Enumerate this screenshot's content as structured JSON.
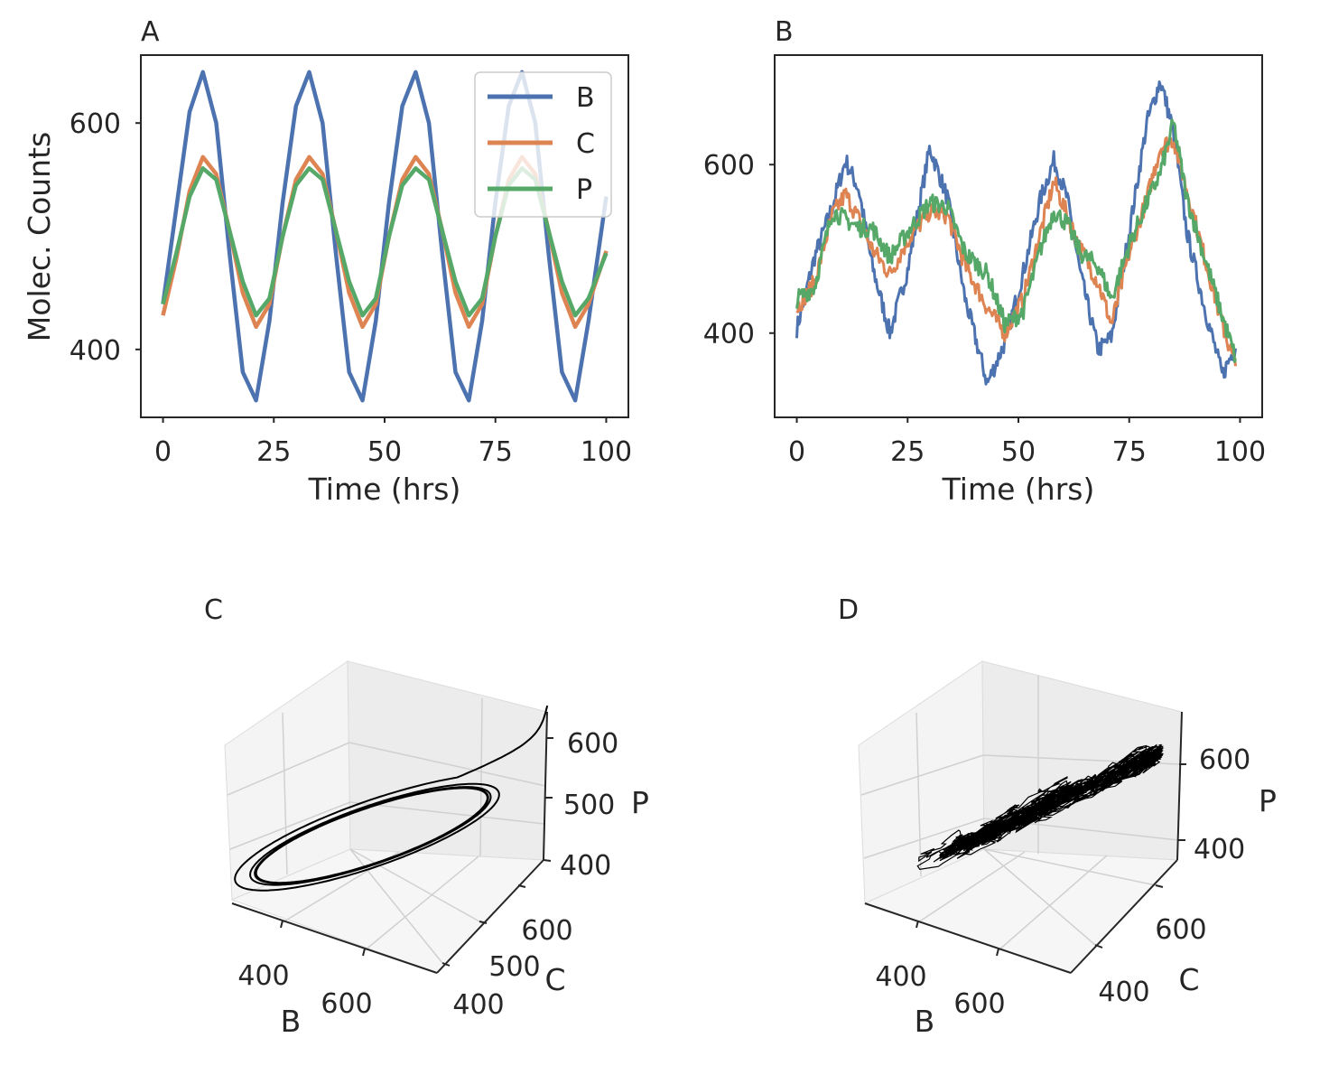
{
  "figure": {
    "panels": [
      {
        "label": "A"
      },
      {
        "label": "B"
      },
      {
        "label": "C"
      },
      {
        "label": "D"
      }
    ]
  },
  "chart_data": [
    {
      "panel": "A",
      "type": "line",
      "xlabel": "Time (hrs)",
      "ylabel": "Molec. Counts",
      "xlim": [
        -5,
        105
      ],
      "ylim": [
        340,
        660
      ],
      "xticks": [
        0,
        25,
        50,
        75,
        100
      ],
      "yticks": [
        400,
        600
      ],
      "grid": false,
      "legend_position": "top-right",
      "x": [
        0,
        3,
        6,
        9,
        12,
        15,
        18,
        21,
        24,
        27,
        30,
        33,
        36,
        39,
        42,
        45,
        48,
        51,
        54,
        57,
        60,
        63,
        66,
        69,
        72,
        75,
        78,
        81,
        84,
        87,
        90,
        93,
        96,
        100
      ],
      "series": [
        {
          "name": "B",
          "color": "#4c72b0",
          "values": [
            440,
            525,
            610,
            645,
            600,
            485,
            380,
            355,
            425,
            530,
            615,
            645,
            600,
            485,
            380,
            355,
            425,
            530,
            615,
            645,
            600,
            485,
            380,
            355,
            425,
            530,
            615,
            645,
            600,
            485,
            380,
            355,
            425,
            535
          ]
        },
        {
          "name": "C",
          "color": "#dd8452",
          "values": [
            430,
            480,
            540,
            570,
            555,
            505,
            450,
            420,
            440,
            500,
            550,
            570,
            555,
            505,
            450,
            420,
            440,
            500,
            550,
            570,
            555,
            505,
            450,
            420,
            440,
            500,
            550,
            570,
            555,
            505,
            450,
            420,
            440,
            487
          ]
        },
        {
          "name": "P",
          "color": "#55a868",
          "values": [
            440,
            485,
            535,
            560,
            550,
            505,
            460,
            430,
            445,
            500,
            545,
            560,
            550,
            505,
            460,
            430,
            445,
            500,
            545,
            560,
            550,
            505,
            460,
            430,
            445,
            500,
            545,
            560,
            550,
            505,
            460,
            430,
            445,
            485
          ]
        }
      ]
    },
    {
      "panel": "B",
      "type": "line",
      "xlabel": "Time (hrs)",
      "ylabel": "",
      "xlim": [
        -5,
        105
      ],
      "ylim": [
        300,
        730
      ],
      "xticks": [
        0,
        25,
        50,
        75,
        100
      ],
      "yticks": [
        400,
        600
      ],
      "grid": false,
      "x": [
        0,
        4,
        8,
        11,
        14,
        17,
        21,
        25,
        30,
        34,
        38,
        43,
        47,
        51,
        55,
        58,
        61,
        64,
        68,
        71,
        75,
        79,
        82,
        85,
        88,
        92,
        96,
        99
      ],
      "series": [
        {
          "color": "#4c72b0",
          "values": [
            405,
            490,
            550,
            605,
            570,
            480,
            400,
            475,
            620,
            560,
            440,
            340,
            390,
            470,
            560,
            605,
            560,
            470,
            380,
            395,
            520,
            650,
            700,
            640,
            520,
            430,
            350,
            385
          ]
        },
        {
          "color": "#dd8452",
          "values": [
            430,
            460,
            540,
            565,
            535,
            500,
            470,
            510,
            545,
            540,
            480,
            430,
            400,
            440,
            520,
            580,
            540,
            500,
            460,
            410,
            495,
            560,
            620,
            630,
            570,
            490,
            410,
            360
          ]
        },
        {
          "color": "#55a868",
          "values": [
            440,
            455,
            545,
            535,
            525,
            525,
            490,
            520,
            555,
            550,
            495,
            470,
            410,
            425,
            500,
            545,
            530,
            495,
            480,
            440,
            505,
            555,
            590,
            650,
            560,
            490,
            420,
            370
          ]
        }
      ]
    },
    {
      "panel": "C",
      "type": "line3d",
      "xlabel": "B",
      "ylabel": "C",
      "zlabel": "P",
      "xticks": [
        400,
        600
      ],
      "yticks": [
        400,
        500,
        600
      ],
      "zticks": [
        400,
        500,
        600
      ],
      "xlim": [
        330,
        680
      ],
      "ylim": [
        400,
        660
      ],
      "zlim": [
        400,
        640
      ],
      "cycle": {
        "B": [
          355,
          645
        ],
        "C": [
          420,
          570
        ],
        "P": [
          430,
          560
        ]
      },
      "transient_start": {
        "B": 680,
        "C": 660,
        "P": 650
      },
      "color": "#000000"
    },
    {
      "panel": "D",
      "type": "scatter3d",
      "xlabel": "B",
      "ylabel": "C",
      "zlabel": "P",
      "xticks": [
        400,
        600
      ],
      "yticks": [
        400,
        600
      ],
      "zticks": [
        400,
        600
      ],
      "xlim": [
        330,
        700
      ],
      "ylim": [
        350,
        700
      ],
      "zlim": [
        360,
        680
      ],
      "cloud": {
        "B": [
          340,
          700
        ],
        "C": [
          360,
          640
        ],
        "P": [
          380,
          650
        ]
      },
      "color": "#000000"
    }
  ]
}
